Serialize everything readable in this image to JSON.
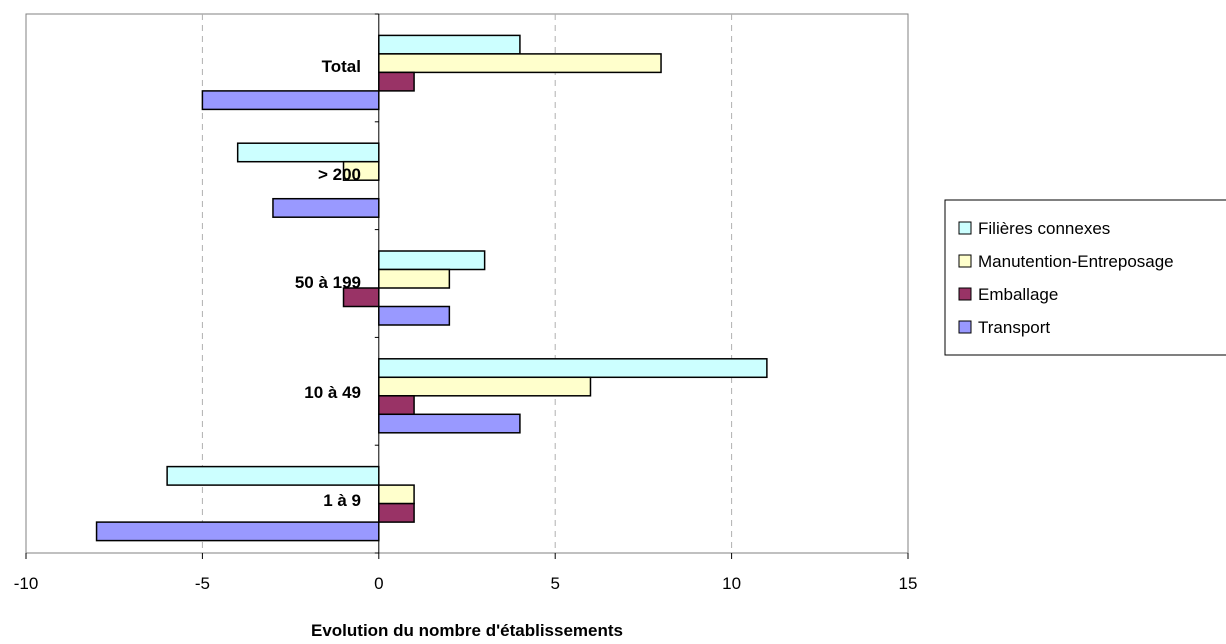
{
  "chart_data": {
    "type": "bar",
    "orientation": "horizontal",
    "title": "",
    "xlabel": "Evolution du nombre d'établissements",
    "ylabel": "",
    "xlim": [
      -10,
      15
    ],
    "xticks": [
      "-10",
      "-5",
      "0",
      "5",
      "10",
      "15"
    ],
    "grid": "vertical dashed",
    "legend_position": "right",
    "categories": [
      "Total",
      "> 200",
      "50 à 199",
      "10 à 49",
      "1 à 9"
    ],
    "series": [
      {
        "name": "Filières connexes",
        "color": "#CCFFFF",
        "values": [
          4,
          -4,
          3,
          11,
          -6
        ]
      },
      {
        "name": "Manutention-Entreposage",
        "color": "#FFFFCC",
        "values": [
          8,
          -1,
          2,
          6,
          1
        ]
      },
      {
        "name": "Emballage",
        "color": "#993366",
        "values": [
          1,
          0,
          -1,
          1,
          1
        ]
      },
      {
        "name": "Transport",
        "color": "#9999FF",
        "values": [
          -5,
          -3,
          2,
          4,
          -8
        ]
      }
    ]
  }
}
